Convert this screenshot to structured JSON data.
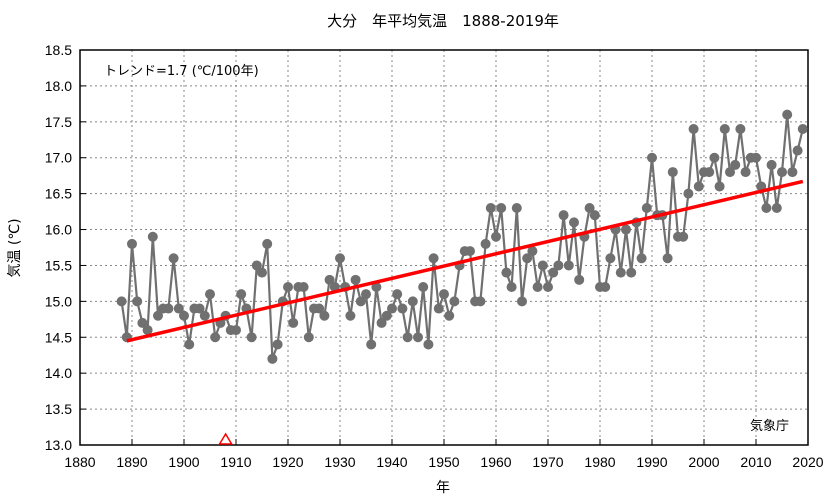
{
  "chart_data": {
    "type": "line",
    "title": "大分　年平均気温　1888-2019年",
    "xlabel": "年",
    "ylabel": "気温 (℃)",
    "xlim": [
      1880,
      2020
    ],
    "ylim": [
      13.0,
      18.5
    ],
    "grid": true,
    "x_ticks": [
      "1880",
      "1890",
      "1900",
      "1910",
      "1920",
      "1930",
      "1940",
      "1950",
      "1960",
      "1970",
      "1980",
      "1990",
      "2000",
      "2010",
      "2020"
    ],
    "y_ticks": [
      "13.0",
      "13.5",
      "14.0",
      "14.5",
      "15.0",
      "15.5",
      "16.0",
      "16.5",
      "17.0",
      "17.5",
      "18.0",
      "18.5"
    ],
    "trend_label": "トレンド=1.7 (℃/100年)",
    "source_label": "気象庁",
    "trend": {
      "x": [
        1889,
        2019
      ],
      "y": [
        14.45,
        16.67
      ],
      "color": "#ff0000"
    },
    "marker": {
      "x": 1908,
      "y": 13.0,
      "color": "#ff0000"
    },
    "series": [
      {
        "name": "年平均気温",
        "color": "#707070",
        "x": [
          1888,
          1889,
          1890,
          1891,
          1892,
          1893,
          1894,
          1895,
          1896,
          1897,
          1898,
          1899,
          1900,
          1901,
          1902,
          1903,
          1904,
          1905,
          1906,
          1907,
          1908,
          1909,
          1910,
          1911,
          1912,
          1913,
          1914,
          1915,
          1916,
          1917,
          1918,
          1919,
          1920,
          1921,
          1922,
          1923,
          1924,
          1925,
          1926,
          1927,
          1928,
          1929,
          1930,
          1931,
          1932,
          1933,
          1934,
          1935,
          1936,
          1937,
          1938,
          1939,
          1940,
          1941,
          1942,
          1943,
          1944,
          1945,
          1946,
          1947,
          1948,
          1949,
          1950,
          1951,
          1952,
          1953,
          1954,
          1955,
          1956,
          1957,
          1958,
          1959,
          1960,
          1961,
          1962,
          1963,
          1964,
          1965,
          1966,
          1967,
          1968,
          1969,
          1970,
          1971,
          1972,
          1973,
          1974,
          1975,
          1976,
          1977,
          1978,
          1979,
          1980,
          1981,
          1982,
          1983,
          1984,
          1985,
          1986,
          1987,
          1988,
          1989,
          1990,
          1991,
          1992,
          1993,
          1994,
          1995,
          1996,
          1997,
          1998,
          1999,
          2000,
          2001,
          2002,
          2003,
          2004,
          2005,
          2006,
          2007,
          2008,
          2009,
          2010,
          2011,
          2012,
          2013,
          2014,
          2015,
          2016,
          2017,
          2018,
          2019
        ],
        "y": [
          15.0,
          14.5,
          15.8,
          15.0,
          14.7,
          14.6,
          15.9,
          14.8,
          14.9,
          14.9,
          15.6,
          14.9,
          14.8,
          14.4,
          14.9,
          14.9,
          14.8,
          15.1,
          14.5,
          14.7,
          14.8,
          14.6,
          14.6,
          15.1,
          14.9,
          14.5,
          15.5,
          15.4,
          15.8,
          14.2,
          14.4,
          15.0,
          15.2,
          14.7,
          15.2,
          15.2,
          14.5,
          14.9,
          14.9,
          14.8,
          15.3,
          15.2,
          15.6,
          15.2,
          14.8,
          15.3,
          15.0,
          15.1,
          14.4,
          15.2,
          14.7,
          14.8,
          14.9,
          15.1,
          14.9,
          14.5,
          15.0,
          14.5,
          15.2,
          14.4,
          15.6,
          14.9,
          15.1,
          14.8,
          15.0,
          15.5,
          15.7,
          15.7,
          15.0,
          15.0,
          15.8,
          16.3,
          15.9,
          16.3,
          15.4,
          15.2,
          16.3,
          15.0,
          15.6,
          15.7,
          15.2,
          15.5,
          15.2,
          15.4,
          15.5,
          16.2,
          15.5,
          16.1,
          15.3,
          15.9,
          16.3,
          16.2,
          15.2,
          15.2,
          15.6,
          16.0,
          15.4,
          16.0,
          15.4,
          16.1,
          15.6,
          16.3,
          17.0,
          16.2,
          16.2,
          15.6,
          16.8,
          15.9,
          15.9,
          16.5,
          17.4,
          16.6,
          16.8,
          16.8,
          17.0,
          16.6,
          17.4,
          16.8,
          16.9,
          17.4,
          16.8,
          17.0,
          17.0,
          16.6,
          16.3,
          16.9,
          16.3,
          16.8,
          17.6,
          16.8,
          17.1,
          17.4
        ]
      }
    ]
  }
}
